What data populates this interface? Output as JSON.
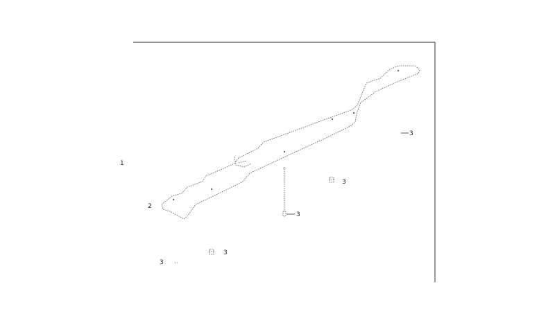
{
  "callouts": {
    "c1": "1",
    "c2": "2",
    "c3_right": "3",
    "c3_mid": "3",
    "c3_bolt": "3",
    "c3_lower": "3",
    "c3_left": "3"
  }
}
